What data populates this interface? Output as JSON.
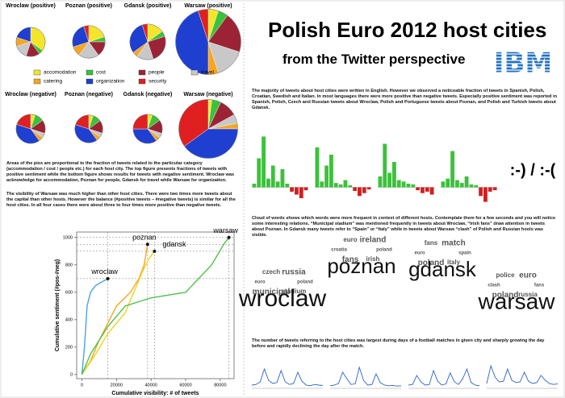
{
  "title": "Polish Euro 2012 host cities",
  "subtitle": "from the Twitter perspective",
  "logo": "IBM",
  "paragraphs": {
    "pies_caption": "Areas of the pies are proportional to the fraction of tweets related to the particular category (accommodation / cost / people etc.) for each host city. The top figure presents fractions of tweets with positive sentiment while the bottom figure shows results for tweets with negative sentiment. Wroclaw was acknowledge for accommodation, Poznan for people, Gdansk for travel while Warsaw for organization.",
    "visibility": "The visibility of Warsaw was much higher than other host cities. There were two times more tweets about the capital than other hosts. However the balance (#positive tweets – #negative tweets) is similar for all the host cities. In all four cases there were about three to four times more positive than negative tweets.",
    "languages": "The majority of tweets about host cities were written in English. However we observed a noticeable fraction of tweets in Spanish, Polish, Croatian, Swedish and Italian. In most languages there were more positive than negative tweets. Especially positive sentiment was reported in Spanish, Polish, Czech and Russian tweets about Wroclaw, Polish and Portuguese tweets about Poznan, and Polish and Turkish tweets about Gdansk.",
    "clouds": "Cloud of words shows which words were more frequent in context of different hosts. Contemplate them for a few seconds and you will notice some interesting relations. “Municipal stadium” was mentioned frequently in tweets about Wroclaw, “Irish fans” draw attention in tweets about Poznan. In Gdansk many tweets refer to “Spain” or “Italy” while in tweets about Warsaw “clash” of Polish and Russian hools was visible.",
    "timeline": "The number of tweets referring to the host cities was largest during days of a football matches in given city and sharply growing the day before and rapidly declining the day after the match."
  },
  "pies": {
    "legend": [
      {
        "name": "accomodation",
        "color": "#f5e52a"
      },
      {
        "name": "cost",
        "color": "#3cc13b"
      },
      {
        "name": "people",
        "color": "#9b2335"
      },
      {
        "name": "travel",
        "color": "#c8c8c8"
      },
      {
        "name": "catering",
        "color": "#f5a623"
      },
      {
        "name": "organization",
        "color": "#1f3fd1"
      },
      {
        "name": "security",
        "color": "#e02020"
      }
    ],
    "charts": [
      {
        "title": "Wroclaw (positive)",
        "tweets": 3200,
        "values": [
          35,
          5,
          15,
          15,
          10,
          20,
          0
        ]
      },
      {
        "title": "Poznan (positive)",
        "tweets": 4000,
        "values": [
          20,
          5,
          15,
          20,
          10,
          25,
          5
        ]
      },
      {
        "title": "Gdansk (positive)",
        "tweets": 4800,
        "values": [
          15,
          5,
          25,
          15,
          5,
          30,
          5
        ]
      },
      {
        "title": "Warsaw (positive)",
        "tweets": 16000,
        "values": [
          5,
          5,
          20,
          15,
          5,
          45,
          5
        ]
      },
      {
        "title": "Wroclaw (negative)",
        "tweets": 3200,
        "values": [
          5,
          10,
          15,
          5,
          5,
          40,
          20
        ]
      },
      {
        "title": "Poznan (negative)",
        "tweets": 2900,
        "values": [
          5,
          10,
          15,
          5,
          5,
          40,
          20
        ]
      },
      {
        "title": "Gdansk (negative)",
        "tweets": 3200,
        "values": [
          5,
          10,
          15,
          5,
          5,
          35,
          25
        ]
      },
      {
        "title": "Warsaw (negative)",
        "tweets": 13000,
        "values": [
          2,
          5,
          10,
          5,
          3,
          40,
          35
        ]
      }
    ]
  },
  "line_chart": {
    "type": "line",
    "xlabel": "Cumulative visibility: # of tweets",
    "ylabel": "Cumulative sentiment (#pos-#neg)",
    "xlim": [
      -3000,
      88000
    ],
    "ylim": [
      -30,
      1040
    ],
    "xticks": [
      0,
      20000,
      40000,
      60000,
      80000
    ],
    "yticks": [
      0,
      200,
      400,
      600,
      800,
      1000
    ],
    "series": [
      {
        "name": "wroclaw",
        "color": "#4aa3df",
        "x": [
          0,
          1500,
          3000,
          5000,
          8000,
          15000
        ],
        "y": [
          0,
          200,
          500,
          600,
          650,
          700
        ]
      },
      {
        "name": "poznan",
        "color": "#f5a623",
        "x": [
          0,
          5000,
          10000,
          20000,
          28000,
          33000,
          36000,
          38000
        ],
        "y": [
          0,
          100,
          250,
          500,
          600,
          700,
          800,
          950
        ]
      },
      {
        "name": "gdansk",
        "color": "#f2d21b",
        "x": [
          0,
          8000,
          15000,
          25000,
          30000,
          35000,
          39000,
          42000
        ],
        "y": [
          0,
          150,
          300,
          450,
          600,
          750,
          850,
          900
        ]
      },
      {
        "name": "warsaw",
        "color": "#4fc14a",
        "x": [
          0,
          5000,
          15000,
          25000,
          40000,
          60000,
          75000,
          82000,
          85000
        ],
        "y": [
          0,
          150,
          350,
          500,
          560,
          600,
          800,
          950,
          1000
        ]
      }
    ]
  },
  "bar_panels": {
    "type": "bar",
    "positive_color": "#3cc13b",
    "negative_color": "#d02020",
    "ylim": [
      -25,
      75
    ],
    "panels": [
      {
        "values": [
          5,
          40,
          70,
          12,
          30,
          8,
          25,
          5,
          -6,
          -10,
          -15,
          -4
        ]
      },
      {
        "values": [
          55,
          8,
          30,
          45,
          6,
          4,
          10,
          3,
          -5,
          -12,
          -8,
          -3
        ]
      },
      {
        "values": [
          15,
          60,
          20,
          35,
          10,
          8,
          5,
          4,
          -4,
          -8,
          -6,
          -10
        ]
      },
      {
        "values": [
          8,
          12,
          50,
          10,
          6,
          15,
          4,
          3,
          -12,
          -20,
          -6,
          -4
        ]
      }
    ],
    "emoticon": ":-) / :-("
  },
  "word_clouds": [
    {
      "city": "wroclaw",
      "words": [
        "poland",
        "stadium",
        "municipal",
        "euro",
        "czech",
        "russia"
      ]
    },
    {
      "city": "poznan",
      "words": [
        "poland",
        "irish",
        "fans",
        "croatia",
        "euro",
        "ireland"
      ]
    },
    {
      "city": "gdansk",
      "words": [
        "spain",
        "italy",
        "poland",
        "euro",
        "fans",
        "match"
      ]
    },
    {
      "city": "warsaw",
      "words": [
        "fans",
        "russia",
        "poland",
        "clash",
        "police",
        "euro"
      ]
    }
  ],
  "timelines": {
    "type": "line",
    "color": "#2a62c9",
    "ylim": [
      0,
      100
    ],
    "panels": [
      {
        "values": [
          10,
          12,
          20,
          60,
          25,
          15,
          18,
          55,
          20,
          12,
          15,
          50,
          22,
          10,
          8,
          12,
          10,
          9
        ]
      },
      {
        "values": [
          8,
          10,
          15,
          50,
          30,
          12,
          14,
          65,
          25,
          10,
          12,
          45,
          18,
          10,
          8,
          9,
          7,
          8
        ]
      },
      {
        "values": [
          10,
          12,
          40,
          20,
          10,
          12,
          55,
          22,
          10,
          14,
          48,
          20,
          12,
          30,
          60,
          18,
          10,
          8
        ]
      },
      {
        "values": [
          15,
          70,
          35,
          20,
          22,
          60,
          25,
          18,
          20,
          50,
          22,
          15,
          18,
          40,
          25,
          15,
          12,
          14
        ]
      }
    ]
  }
}
